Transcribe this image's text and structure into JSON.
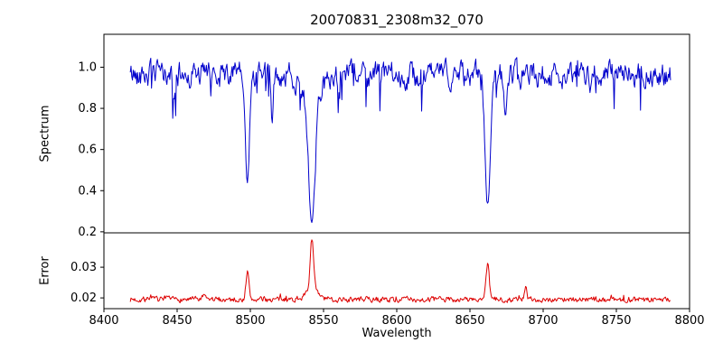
{
  "figure": {
    "background": "#ffffff",
    "axes_edge_color": "#000000",
    "text_color": "#000000"
  },
  "chart_data": {
    "type": "line",
    "title": "20070831_2308m32_070",
    "xlabel": "Wavelength",
    "grid": false,
    "legend": null,
    "x_range": [
      8400,
      8800
    ],
    "x_ticks": [
      8400,
      8450,
      8500,
      8550,
      8600,
      8650,
      8700,
      8750,
      8800
    ],
    "x_tick_labels": [
      "8400",
      "8450",
      "8500",
      "8550",
      "8600",
      "8650",
      "8700",
      "8750",
      "8800"
    ],
    "panels": [
      {
        "name": "spectrum",
        "ylabel": "Spectrum",
        "ylim": [
          0.195,
          1.16
        ],
        "y_ticks": [
          0.2,
          0.4,
          0.6,
          0.8,
          1.0
        ],
        "y_tick_labels": [
          "0.2",
          "0.4",
          "0.6",
          "0.8",
          "1.0"
        ],
        "color": "#0000cc",
        "series": {
          "x_start": 8418,
          "x_end": 8787,
          "x_step": 0.5,
          "continuum": 0.965,
          "noise": {
            "seed": 42,
            "amplitude": 0.05,
            "correlation": 0.55,
            "downward_spike_prob": 0.05,
            "downward_spike_max": 0.2
          },
          "absorption_lines": [
            {
              "center": 8498.0,
              "depth": 0.55,
              "sigma": 1.4
            },
            {
              "center": 8542.1,
              "depth": 0.72,
              "sigma": 2.2
            },
            {
              "center": 8542.1,
              "depth": 0.12,
              "sigma": 6.0
            },
            {
              "center": 8662.1,
              "depth": 0.66,
              "sigma": 1.8
            },
            {
              "center": 8515.0,
              "depth": 0.22,
              "sigma": 0.8
            },
            {
              "center": 8674.5,
              "depth": 0.24,
              "sigma": 0.9
            },
            {
              "center": 8448.0,
              "depth": 0.16,
              "sigma": 0.7
            }
          ]
        }
      },
      {
        "name": "error",
        "ylabel": "Error",
        "ylim": [
          0.0165,
          0.0412
        ],
        "y_ticks": [
          0.02,
          0.03
        ],
        "y_tick_labels": [
          "0.02",
          "0.03"
        ],
        "color": "#dd0000",
        "series": {
          "x_start": 8418,
          "x_end": 8787,
          "x_step": 0.5,
          "baseline": 0.0195,
          "noise": {
            "seed": 7,
            "amplitude": 0.0006,
            "correlation": 0.4,
            "upward_spike_prob": 0.04,
            "upward_spike_max": 0.0012
          },
          "emission_peaks": [
            {
              "center": 8498.0,
              "amplitude": 0.009,
              "sigma": 1.0
            },
            {
              "center": 8542.1,
              "amplitude": 0.017,
              "sigma": 1.2
            },
            {
              "center": 8542.1,
              "amplitude": 0.003,
              "sigma": 4.0
            },
            {
              "center": 8662.1,
              "amplitude": 0.011,
              "sigma": 1.1
            },
            {
              "center": 8688.0,
              "amplitude": 0.0038,
              "sigma": 0.8
            },
            {
              "center": 8432.0,
              "amplitude": 0.0015,
              "sigma": 0.7
            },
            {
              "center": 8468.0,
              "amplitude": 0.0013,
              "sigma": 0.7
            }
          ]
        }
      }
    ]
  }
}
